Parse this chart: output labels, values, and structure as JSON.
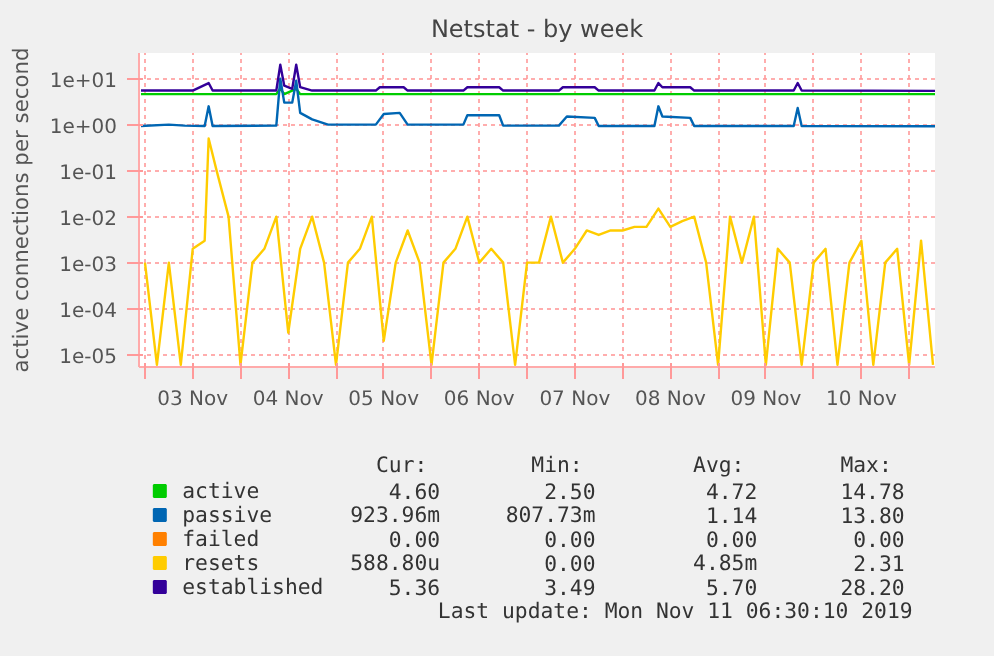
{
  "chart_data": {
    "type": "line",
    "title": "Netstat - by week",
    "ylabel": "active connections per second",
    "log": true,
    "grid": true,
    "legend": "bottom",
    "xlim": [
      "2019-11-02T22:30",
      "2019-11-11T06:30"
    ],
    "xticks": [
      {
        "value": "2019-11-03T00:00",
        "label": null
      },
      {
        "value": "2019-11-03T12:00",
        "label": "03 Nov"
      },
      {
        "value": "2019-11-04T00:00",
        "label": null
      },
      {
        "value": "2019-11-04T12:00",
        "label": "04 Nov"
      },
      {
        "value": "2019-11-05T00:00",
        "label": null
      },
      {
        "value": "2019-11-05T12:00",
        "label": "05 Nov"
      },
      {
        "value": "2019-11-06T00:00",
        "label": null
      },
      {
        "value": "2019-11-06T12:00",
        "label": "06 Nov"
      },
      {
        "value": "2019-11-07T00:00",
        "label": null
      },
      {
        "value": "2019-11-07T12:00",
        "label": "07 Nov"
      },
      {
        "value": "2019-11-08T00:00",
        "label": null
      },
      {
        "value": "2019-11-08T12:00",
        "label": "08 Nov"
      },
      {
        "value": "2019-11-09T00:00",
        "label": null
      },
      {
        "value": "2019-11-09T12:00",
        "label": "09 Nov"
      },
      {
        "value": "2019-11-10T00:00",
        "label": null
      },
      {
        "value": "2019-11-10T12:00",
        "label": "10 Nov"
      },
      {
        "value": "2019-11-11T00:00",
        "label": null
      }
    ],
    "ylim": [
      5.4e-06,
      36
    ],
    "yticks": [
      {
        "value": 1e-05,
        "label": "1e-05"
      },
      {
        "value": 0.0001,
        "label": "1e-04"
      },
      {
        "value": 0.001,
        "label": "1e-03"
      },
      {
        "value": 0.01,
        "label": "1e-02"
      },
      {
        "value": 0.1,
        "label": "1e-01"
      },
      {
        "value": 1,
        "label": "1e+00"
      },
      {
        "value": 10,
        "label": "1e+01"
      }
    ],
    "series": [
      {
        "name": "active",
        "color": "#00cc00",
        "x": [
          "2019-11-02T23:00",
          "2019-11-04T09:00",
          "2019-11-04T10:00",
          "2019-11-04T11:00",
          "2019-11-04T14:00",
          "2019-11-04T15:00",
          "2019-11-11T06:30"
        ],
        "values": [
          4.6,
          4.6,
          6,
          4.6,
          6,
          4.6,
          4.6
        ]
      },
      {
        "name": "passive",
        "color": "#0066b3",
        "x": [
          "2019-11-02T23:00",
          "2019-11-03T06:00",
          "2019-11-03T10:00",
          "2019-11-03T15:00",
          "2019-11-03T16:00",
          "2019-11-03T17:00",
          "2019-11-04T09:00",
          "2019-11-04T10:00",
          "2019-11-04T11:00",
          "2019-11-04T13:00",
          "2019-11-04T14:00",
          "2019-11-04T15:00",
          "2019-11-04T18:00",
          "2019-11-04T22:00",
          "2019-11-05T10:00",
          "2019-11-05T12:00",
          "2019-11-05T16:00",
          "2019-11-05T18:00",
          "2019-11-06T08:00",
          "2019-11-06T09:00",
          "2019-11-06T17:00",
          "2019-11-06T18:00",
          "2019-11-07T08:00",
          "2019-11-07T10:00",
          "2019-11-07T17:00",
          "2019-11-07T18:00",
          "2019-11-08T08:00",
          "2019-11-08T09:00",
          "2019-11-08T10:00",
          "2019-11-08T17:00",
          "2019-11-08T18:00",
          "2019-11-09T19:00",
          "2019-11-09T20:00",
          "2019-11-09T21:00",
          "2019-11-11T06:30"
        ],
        "values": [
          0.93,
          1.0,
          0.95,
          0.93,
          2.5,
          0.93,
          0.95,
          10,
          3,
          3,
          9,
          1.8,
          1.3,
          1.0,
          1.0,
          1.7,
          1.8,
          1.0,
          1.0,
          1.6,
          1.6,
          0.95,
          0.95,
          1.5,
          1.4,
          0.93,
          0.93,
          2.5,
          1.5,
          1.4,
          0.93,
          0.93,
          2.3,
          0.93,
          0.92
        ]
      },
      {
        "name": "failed",
        "color": "#ff8000"
      },
      {
        "name": "resets",
        "color": "#ffcc00",
        "x": [
          "2019-11-03T00:00",
          "2019-11-03T03:00",
          "2019-11-03T06:00",
          "2019-11-03T09:00",
          "2019-11-03T12:00",
          "2019-11-03T15:00",
          "2019-11-03T16:00",
          "2019-11-03T18:00",
          "2019-11-03T21:00",
          "2019-11-04T00:00",
          "2019-11-04T03:00",
          "2019-11-04T06:00",
          "2019-11-04T09:00",
          "2019-11-04T12:00",
          "2019-11-04T15:00",
          "2019-11-04T18:00",
          "2019-11-04T21:00",
          "2019-11-05T00:00",
          "2019-11-05T03:00",
          "2019-11-05T06:00",
          "2019-11-05T09:00",
          "2019-11-05T12:00",
          "2019-11-05T15:00",
          "2019-11-05T18:00",
          "2019-11-05T21:00",
          "2019-11-06T00:00",
          "2019-11-06T03:00",
          "2019-11-06T06:00",
          "2019-11-06T09:00",
          "2019-11-06T12:00",
          "2019-11-06T15:00",
          "2019-11-06T18:00",
          "2019-11-06T21:00",
          "2019-11-07T00:00",
          "2019-11-07T03:00",
          "2019-11-07T06:00",
          "2019-11-07T09:00",
          "2019-11-07T12:00",
          "2019-11-07T15:00",
          "2019-11-07T18:00",
          "2019-11-07T21:00",
          "2019-11-08T00:00",
          "2019-11-08T03:00",
          "2019-11-08T06:00",
          "2019-11-08T09:00",
          "2019-11-08T12:00",
          "2019-11-08T15:00",
          "2019-11-08T18:00",
          "2019-11-08T21:00",
          "2019-11-09T00:00",
          "2019-11-09T03:00",
          "2019-11-09T06:00",
          "2019-11-09T09:00",
          "2019-11-09T12:00",
          "2019-11-09T15:00",
          "2019-11-09T18:00",
          "2019-11-09T21:00",
          "2019-11-10T00:00",
          "2019-11-10T03:00",
          "2019-11-10T06:00",
          "2019-11-10T09:00",
          "2019-11-10T12:00",
          "2019-11-10T15:00",
          "2019-11-10T18:00",
          "2019-11-10T21:00",
          "2019-11-11T00:00",
          "2019-11-11T03:00",
          "2019-11-11T06:00"
        ],
        "values": [
          0.001,
          6e-06,
          0.001,
          6e-06,
          0.002,
          0.003,
          0.5,
          0.1,
          0.01,
          6e-06,
          0.001,
          0.002,
          0.01,
          3e-05,
          0.002,
          0.01,
          0.001,
          6e-06,
          0.001,
          0.002,
          0.01,
          2e-05,
          0.001,
          0.005,
          0.001,
          6e-06,
          0.001,
          0.002,
          0.01,
          0.001,
          0.002,
          0.001,
          6e-06,
          0.001,
          0.001,
          0.01,
          0.001,
          0.002,
          0.005,
          0.004,
          0.005,
          0.005,
          0.006,
          0.006,
          0.015,
          0.006,
          0.008,
          0.01,
          0.001,
          6e-06,
          0.01,
          0.001,
          0.01,
          6e-06,
          0.002,
          0.001,
          6e-06,
          0.001,
          0.002,
          6e-06,
          0.001,
          0.003,
          6e-06,
          0.001,
          0.002,
          6e-06,
          0.003,
          6e-06
        ]
      },
      {
        "name": "established",
        "color": "#330099",
        "x": [
          "2019-11-02T23:00",
          "2019-11-03T12:00",
          "2019-11-03T16:00",
          "2019-11-03T17:00",
          "2019-11-04T09:00",
          "2019-11-04T10:00",
          "2019-11-04T11:00",
          "2019-11-04T13:00",
          "2019-11-04T14:00",
          "2019-11-04T15:00",
          "2019-11-04T18:00",
          "2019-11-05T10:00",
          "2019-11-05T11:00",
          "2019-11-05T17:00",
          "2019-11-05T18:00",
          "2019-11-06T08:00",
          "2019-11-06T09:00",
          "2019-11-06T17:00",
          "2019-11-06T18:00",
          "2019-11-07T08:00",
          "2019-11-07T09:00",
          "2019-11-07T17:00",
          "2019-11-07T18:00",
          "2019-11-08T08:00",
          "2019-11-08T09:00",
          "2019-11-08T10:00",
          "2019-11-08T17:00",
          "2019-11-08T18:00",
          "2019-11-09T19:00",
          "2019-11-09T20:00",
          "2019-11-09T21:00",
          "2019-11-11T06:30"
        ],
        "values": [
          5.5,
          5.5,
          8,
          5.5,
          5.5,
          20,
          7,
          6,
          20,
          6.5,
          5.5,
          5.5,
          6.5,
          6.5,
          5.5,
          5.5,
          6.5,
          6.5,
          5.5,
          5.5,
          6.5,
          6.5,
          5.5,
          5.5,
          8,
          6.5,
          6.5,
          5.5,
          5.5,
          8,
          5.5,
          5.4
        ]
      }
    ],
    "annotations": [
      "Cur:",
      "Min:",
      "Avg:",
      "Max:",
      "4.60",
      "2.50",
      "4.72",
      "14.78",
      "923.96m",
      "807.73m",
      "1.14",
      "13.80",
      "0.00",
      "0.00",
      "0.00",
      "0.00",
      "588.80u",
      "0.00",
      "4.85m",
      "2.31",
      "5.36",
      "3.49",
      "5.70",
      "28.20",
      "Last update: Mon Nov 11 06:30:10 2019"
    ]
  }
}
